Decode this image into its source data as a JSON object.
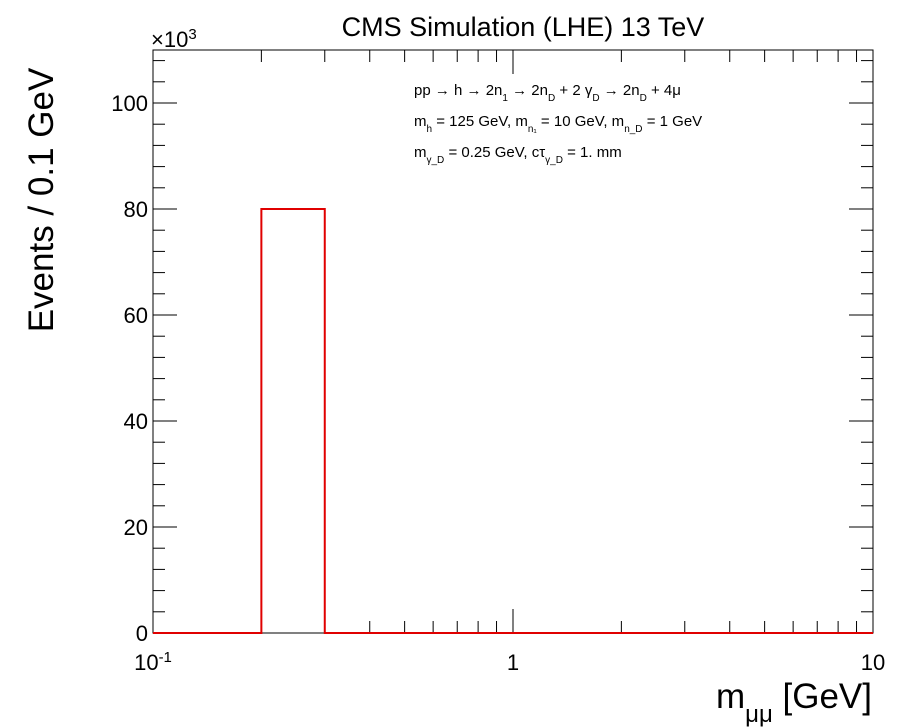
{
  "chart_data": {
    "type": "histogram",
    "title": "CMS Simulation (LHE) 13 TeV",
    "xlabel": {
      "main": "m",
      "sub": "μμ",
      "unit": " [GeV]"
    },
    "ylabel": "Events / 0.1 GeV",
    "x_scale": "log",
    "xlim": [
      0.1,
      10
    ],
    "ylim": [
      0,
      110
    ],
    "y_multiplier": {
      "base": "×10",
      "exp": "3"
    },
    "x_tick_labels": [
      {
        "value": 0.1,
        "base": "10",
        "exp": "-1"
      },
      {
        "value": 1,
        "base": "1",
        "exp": ""
      },
      {
        "value": 10,
        "base": "10",
        "exp": ""
      }
    ],
    "y_ticks": [
      0,
      20,
      40,
      60,
      80,
      100
    ],
    "grid": false,
    "series": [
      {
        "color": "#e00000",
        "bins": [
          {
            "x_low": 0.1,
            "x_high": 0.2,
            "value": 0
          },
          {
            "x_low": 0.2,
            "x_high": 0.3,
            "value": 80
          },
          {
            "x_low": 0.3,
            "x_high": 10,
            "value": 0
          }
        ]
      }
    ],
    "legend_lines": [
      {
        "segments": [
          {
            "t": "pp → h → 2n"
          },
          {
            "t": "1",
            "sub": true
          },
          {
            "t": " → 2n"
          },
          {
            "t": "D",
            "sub": true
          },
          {
            "t": " + 2 γ"
          },
          {
            "t": "D",
            "sub": true
          },
          {
            "t": " → 2n"
          },
          {
            "t": "D",
            "sub": true
          },
          {
            "t": " + 4μ"
          }
        ]
      },
      {
        "segments": [
          {
            "t": "m"
          },
          {
            "t": "h",
            "sub": true
          },
          {
            "t": " = 125 GeV, m"
          },
          {
            "t": "n₁",
            "sub": true
          },
          {
            "t": " = 10 GeV, m"
          },
          {
            "t": "n_D",
            "sub": true
          },
          {
            "t": " = 1 GeV"
          }
        ]
      },
      {
        "segments": [
          {
            "t": "m"
          },
          {
            "t": "γ_D",
            "sub": true
          },
          {
            "t": " = 0.25 GeV, cτ"
          },
          {
            "t": "γ_D",
            "sub": true
          },
          {
            "t": " = 1. mm"
          }
        ]
      }
    ]
  }
}
